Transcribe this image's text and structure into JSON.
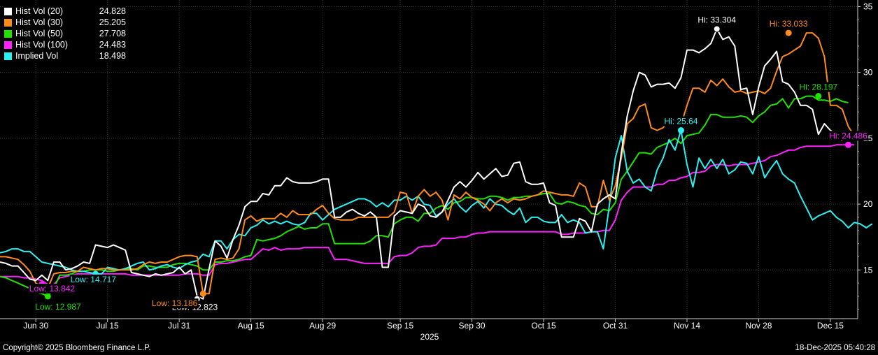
{
  "chart_data": {
    "type": "line",
    "x_ticks": [
      "Jun 30",
      "Jul 15",
      "Jul 31",
      "Aug 15",
      "Aug 29",
      "Sep 15",
      "Sep 30",
      "Oct 15",
      "Oct 31",
      "Nov 14",
      "Nov 28",
      "Dec 15"
    ],
    "year_label": "2025",
    "y_ticks": [
      15,
      20,
      25,
      30,
      35
    ],
    "ylim": [
      11.3,
      35.5
    ],
    "grid": true,
    "x_index_range": [
      0,
      137
    ],
    "series": [
      {
        "name": "Hist Vol (20)",
        "last": "24.828",
        "color": "#ffffff",
        "values": [
          15.6,
          15.5,
          15.3,
          15.3,
          14.8,
          14.3,
          14.2,
          14.6,
          14.2,
          15.6,
          15.6,
          15.0,
          15.1,
          15.3,
          15.6,
          15.5,
          16.9,
          16.8,
          16.7,
          16.9,
          16.7,
          16.5,
          14.8,
          14.7,
          14.6,
          14.5,
          14.7,
          14.6,
          14.7,
          14.8,
          15.2,
          14.7,
          15.0,
          13.0,
          12.8,
          15.1,
          17.2,
          16.8,
          15.9,
          17.3,
          18.4,
          19.8,
          20.2,
          20.2,
          20.8,
          20.7,
          21.4,
          21.4,
          22.0,
          21.7,
          21.6,
          21.6,
          21.6,
          21.7,
          21.9,
          21.9,
          19.0,
          19.0,
          19.4,
          19.6,
          19.3,
          19.1,
          19.4,
          19.0,
          15.2,
          15.2,
          19.1,
          19.5,
          19.4,
          19.3,
          20.0,
          19.8,
          19.1,
          19.0,
          19.4,
          20.3,
          21.3,
          21.7,
          21.3,
          21.8,
          22.4,
          21.9,
          22.3,
          22.7,
          22.1,
          22.2,
          23.1,
          23.2,
          21.7,
          21.5,
          21.5,
          21.6,
          20.1,
          19.9,
          17.5,
          17.5,
          17.5,
          18.9,
          18.7,
          17.9,
          20.0,
          20.4,
          20.7,
          20.4,
          23.9,
          26.7,
          28.6,
          30.0,
          29.8,
          28.9,
          29.1,
          29.1,
          29.2,
          28.8,
          29.6,
          31.7,
          31.7,
          31.5,
          31.8,
          32.2,
          33.3,
          32.5,
          32.7,
          32.0,
          28.7,
          28.8,
          26.8,
          28.9,
          30.5,
          31.0,
          31.6,
          29.3,
          29.1,
          28.5,
          27.5,
          27.5,
          27.2,
          25.3,
          26.1,
          25.6,
          25.3,
          24.8
        ]
      },
      {
        "name": "Hist Vol (30)",
        "last": "25.205",
        "color": "#ff8c1a",
        "values": [
          16.0,
          16.0,
          15.9,
          15.8,
          15.4,
          14.9,
          14.0,
          13.7,
          13.6,
          14.7,
          14.8,
          14.8,
          14.9,
          14.9,
          15.2,
          15.1,
          15.0,
          15.1,
          15.1,
          15.0,
          15.0,
          15.0,
          15.0,
          15.1,
          15.4,
          15.6,
          15.5,
          15.6,
          15.6,
          15.8,
          16.0,
          16.1,
          16.1,
          16.0,
          13.2,
          13.2,
          15.8,
          15.9,
          15.8,
          15.9,
          16.6,
          18.8,
          19.1,
          18.7,
          18.9,
          18.9,
          18.9,
          19.3,
          19.0,
          19.5,
          19.2,
          19.2,
          19.2,
          19.6,
          19.9,
          19.3,
          18.9,
          18.8,
          18.8,
          18.8,
          19.0,
          19.0,
          19.0,
          19.0,
          19.0,
          19.0,
          19.4,
          20.9,
          20.8,
          19.3,
          20.6,
          21.1,
          20.6,
          20.9,
          20.3,
          18.8,
          20.7,
          20.4,
          20.9,
          20.5,
          20.3,
          20.0,
          19.5,
          20.1,
          20.4,
          20.1,
          20.4,
          20.3,
          20.4,
          20.6,
          20.7,
          21.0,
          20.9,
          20.8,
          20.7,
          20.7,
          20.6,
          21.6,
          21.3,
          19.8,
          19.8,
          21.8,
          20.3,
          21.4,
          23.5,
          26.1,
          26.5,
          27.4,
          27.6,
          25.8,
          25.6,
          25.8,
          26.4,
          26.6,
          26.0,
          27.5,
          28.8,
          28.8,
          28.5,
          29.4,
          29.0,
          29.5,
          28.9,
          28.5,
          28.6,
          28.4,
          28.5,
          28.6,
          28.4,
          28.8,
          30.1,
          31.2,
          31.4,
          31.7,
          32.0,
          33.0,
          33.0,
          32.6,
          31.2,
          27.5,
          27.5,
          27.2,
          25.9,
          25.2
        ]
      },
      {
        "name": "Hist Vol (50)",
        "last": "27.708",
        "color": "#22e000",
        "values": [
          14.5,
          14.4,
          14.2,
          14.0,
          13.8,
          13.6,
          13.3,
          13.2,
          13.0,
          13.6,
          14.6,
          14.6,
          14.7,
          14.9,
          14.9,
          15.0,
          15.0,
          15.0,
          14.9,
          14.9,
          15.0,
          15.1,
          15.1,
          15.0,
          15.3,
          15.3,
          15.2,
          15.2,
          15.2,
          15.4,
          15.5,
          15.5,
          15.4,
          15.3,
          15.0,
          15.0,
          15.6,
          15.6,
          15.7,
          15.7,
          15.8,
          16.0,
          16.1,
          17.3,
          17.2,
          17.3,
          17.4,
          17.6,
          17.9,
          18.1,
          18.3,
          18.1,
          18.2,
          18.2,
          18.5,
          18.5,
          17.0,
          17.0,
          17.0,
          17.0,
          17.0,
          17.0,
          17.2,
          17.6,
          17.6,
          17.5,
          18.5,
          18.8,
          19.0,
          19.0,
          18.7,
          19.3,
          19.3,
          19.7,
          19.9,
          19.6,
          20.1,
          20.2,
          20.5,
          20.5,
          20.4,
          20.4,
          20.6,
          20.6,
          20.5,
          20.3,
          20.5,
          20.5,
          20.6,
          20.6,
          20.7,
          20.8,
          20.8,
          20.1,
          20.0,
          20.2,
          20.1,
          19.9,
          19.8,
          19.3,
          19.2,
          19.6,
          19.5,
          20.1,
          21.9,
          22.5,
          23.2,
          23.9,
          23.9,
          23.8,
          24.3,
          24.5,
          24.7,
          25.0,
          24.6,
          25.2,
          25.3,
          25.4,
          26.0,
          26.8,
          26.8,
          26.6,
          26.6,
          26.6,
          26.7,
          26.6,
          26.2,
          26.7,
          27.0,
          27.5,
          27.6,
          28.0,
          27.3,
          28.0,
          28.0,
          28.2,
          28.2,
          27.9,
          27.9,
          27.8,
          28.0,
          27.8,
          27.7
        ]
      },
      {
        "name": "Hist Vol (100)",
        "last": "24.483",
        "color": "#ff22ff",
        "values": [
          14.5,
          14.5,
          14.5,
          14.5,
          14.4,
          14.4,
          14.3,
          14.2,
          13.9,
          13.9,
          14.4,
          14.5,
          14.6,
          14.7,
          14.7,
          14.7,
          14.7,
          14.7,
          14.7,
          14.7,
          14.7,
          14.7,
          14.6,
          14.6,
          14.6,
          14.6,
          14.6,
          14.6,
          14.6,
          14.6,
          14.6,
          14.7,
          14.7,
          14.7,
          14.6,
          14.6,
          15.4,
          15.5,
          15.5,
          15.6,
          15.7,
          15.8,
          15.8,
          16.2,
          16.6,
          16.5,
          16.7,
          16.5,
          16.6,
          16.6,
          16.6,
          16.7,
          16.7,
          16.7,
          16.7,
          16.7,
          15.8,
          15.8,
          15.8,
          15.7,
          15.6,
          15.5,
          15.5,
          15.5,
          15.5,
          15.5,
          16.0,
          16.1,
          16.1,
          16.3,
          16.7,
          16.8,
          16.8,
          16.9,
          17.4,
          17.4,
          17.4,
          17.5,
          17.5,
          17.7,
          17.8,
          17.8,
          17.9,
          17.9,
          17.9,
          17.9,
          17.9,
          17.9,
          17.9,
          17.9,
          17.9,
          17.9,
          17.9,
          17.9,
          17.7,
          17.7,
          17.8,
          17.8,
          17.8,
          17.9,
          17.9,
          18.0,
          18.0,
          18.8,
          20.3,
          20.9,
          21.3,
          21.3,
          21.3,
          21.3,
          21.5,
          21.5,
          21.8,
          21.8,
          22.0,
          22.1,
          22.4,
          22.4,
          22.5,
          22.9,
          23.0,
          23.0,
          22.9,
          23.0,
          23.0,
          23.0,
          23.1,
          23.2,
          23.3,
          23.6,
          23.7,
          23.9,
          24.1,
          24.1,
          24.3,
          24.4,
          24.4,
          24.4,
          24.4,
          24.4,
          24.5,
          24.5,
          24.5,
          24.5
        ]
      },
      {
        "name": "Implied Vol",
        "last": "18.498",
        "color": "#2af0f0",
        "values": [
          16.3,
          16.4,
          16.6,
          16.6,
          16.4,
          16.4,
          16.0,
          15.6,
          15.5,
          15.4,
          15.3,
          15.2,
          15.0,
          14.9,
          14.9,
          14.8,
          14.7,
          14.7,
          15.2,
          15.1,
          15.0,
          15.1,
          15.3,
          15.5,
          15.6,
          15.0,
          15.1,
          15.3,
          15.4,
          15.2,
          15.1,
          15.4,
          15.6,
          15.7,
          16.2,
          16.0,
          17.2,
          17.2,
          16.6,
          17.3,
          17.7,
          17.6,
          18.2,
          18.4,
          18.8,
          18.5,
          18.7,
          18.5,
          18.7,
          18.5,
          18.4,
          18.6,
          19.3,
          19.3,
          18.8,
          19.2,
          19.6,
          19.8,
          20.0,
          20.2,
          20.4,
          20.4,
          20.2,
          19.8,
          20.1,
          19.8,
          20.3,
          20.3,
          20.6,
          20.3,
          20.6,
          20.0,
          19.9,
          19.1,
          19.4,
          20.0,
          20.4,
          19.8,
          19.4,
          19.9,
          20.2,
          19.7,
          20.4,
          20.0,
          19.9,
          19.5,
          19.2,
          19.7,
          18.6,
          19.0,
          19.0,
          18.7,
          18.6,
          18.6,
          19.2,
          18.6,
          18.8,
          18.6,
          17.8,
          17.9,
          17.9,
          16.6,
          19.9,
          23.5,
          25.2,
          22.5,
          21.6,
          21.9,
          21.3,
          21.0,
          22.6,
          23.5,
          24.9,
          24.1,
          25.6,
          23.0,
          21.3,
          23.5,
          22.7,
          23.4,
          22.7,
          23.4,
          22.3,
          22.6,
          23.2,
          23.1,
          22.3,
          23.6,
          22.0,
          22.7,
          23.3,
          22.3,
          21.9,
          21.6,
          20.6,
          19.7,
          18.8,
          19.1,
          19.3,
          19.5,
          19.0,
          18.7,
          18.2,
          18.6,
          18.5,
          18.2,
          18.5
        ]
      }
    ],
    "annotations": [
      {
        "series": 0,
        "text": "Hi: 33.304",
        "i": 120,
        "v": 33.3,
        "side": "above"
      },
      {
        "series": 1,
        "text": "Hi: 33.033",
        "i": 132,
        "v": 33.0,
        "side": "above"
      },
      {
        "series": 2,
        "text": "Hi: 28.197",
        "i": 137,
        "v": 28.2,
        "side": "above"
      },
      {
        "series": 3,
        "text": "Hi: 24.486",
        "i": 142,
        "v": 24.5,
        "side": "above"
      },
      {
        "series": 4,
        "text": "Hi: 25.64",
        "i": 114,
        "v": 25.6,
        "side": "above"
      },
      {
        "series": 0,
        "text": "Low: 12.823",
        "i": 33,
        "v": 12.8,
        "side": "below"
      },
      {
        "series": 1,
        "text": "Low: 13.186",
        "i": 34,
        "v": 13.2,
        "side": "below-left"
      },
      {
        "series": 2,
        "text": "Low: 12.987",
        "i": 8,
        "v": 13.0,
        "side": "below"
      },
      {
        "series": 3,
        "text": "Low: 13.842",
        "i": 7,
        "v": 13.9,
        "side": "below"
      },
      {
        "series": 4,
        "text": "Low: 14.717",
        "i": 16,
        "v": 14.7,
        "side": "below"
      }
    ]
  },
  "footer": {
    "copyright": "Copyright© 2025 Bloomberg Finance L.P.",
    "timestamp": "18-Dec-2025 05:40:28"
  }
}
